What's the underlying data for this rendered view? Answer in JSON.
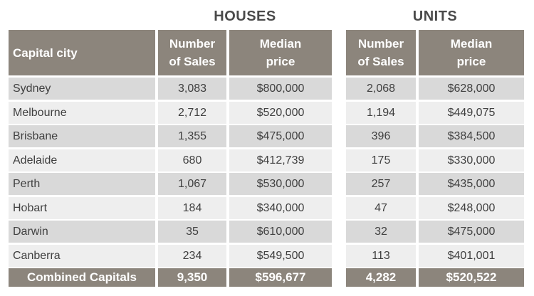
{
  "groups": {
    "houses": "HOUSES",
    "units": "UNITS"
  },
  "headers": {
    "city": "Capital city",
    "sales_l1": "Number",
    "sales_l2": "of Sales",
    "price_l1": "Median",
    "price_l2": "price"
  },
  "rows": [
    {
      "city": "Sydney",
      "house_sales": "3,083",
      "house_price": "$800,000",
      "unit_sales": "2,068",
      "unit_price": "$628,000"
    },
    {
      "city": "Melbourne",
      "house_sales": "2,712",
      "house_price": "$520,000",
      "unit_sales": "1,194",
      "unit_price": "$449,075"
    },
    {
      "city": "Brisbane",
      "house_sales": "1,355",
      "house_price": "$475,000",
      "unit_sales": "396",
      "unit_price": "$384,500"
    },
    {
      "city": "Adelaide",
      "house_sales": "680",
      "house_price": "$412,739",
      "unit_sales": "175",
      "unit_price": "$330,000"
    },
    {
      "city": "Perth",
      "house_sales": "1,067",
      "house_price": "$530,000",
      "unit_sales": "257",
      "unit_price": "$435,000"
    },
    {
      "city": "Hobart",
      "house_sales": "184",
      "house_price": "$340,000",
      "unit_sales": "47",
      "unit_price": "$248,000"
    },
    {
      "city": "Darwin",
      "house_sales": "35",
      "house_price": "$610,000",
      "unit_sales": "32",
      "unit_price": "$475,000"
    },
    {
      "city": "Canberra",
      "house_sales": "234",
      "house_price": "$549,500",
      "unit_sales": "113",
      "unit_price": "$401,001"
    }
  ],
  "total": {
    "city": "Combined Capitals",
    "house_sales": "9,350",
    "house_price": "$596,677",
    "unit_sales": "4,282",
    "unit_price": "$520,522"
  }
}
